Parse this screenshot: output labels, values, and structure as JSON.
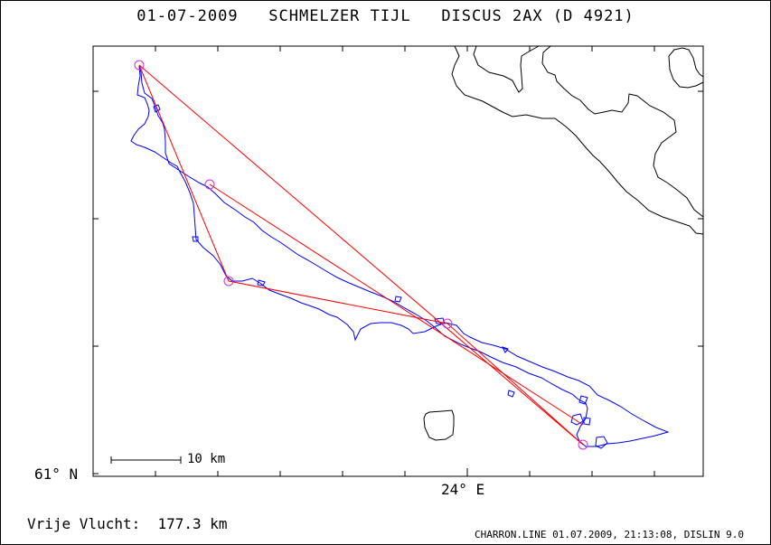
{
  "header": {
    "date": "01-07-2009",
    "pilot": "SCHMELZER TIJL",
    "glider": "DISCUS 2AX (D 4921)"
  },
  "map": {
    "lat_label": "61° N",
    "lon_label": "24° E",
    "scale_label": "10 km",
    "colors": {
      "track": "#0000ff",
      "task": "#ff0000",
      "turnpoint": "#cc33cc",
      "coast": "#000000"
    }
  },
  "summary": {
    "label": "Vrije Vlucht:",
    "distance": "177.3 km"
  },
  "footer": {
    "credit": "CHARRON.LINE 01.07.2009, 21:13:08, DISLIN 9.0"
  }
}
